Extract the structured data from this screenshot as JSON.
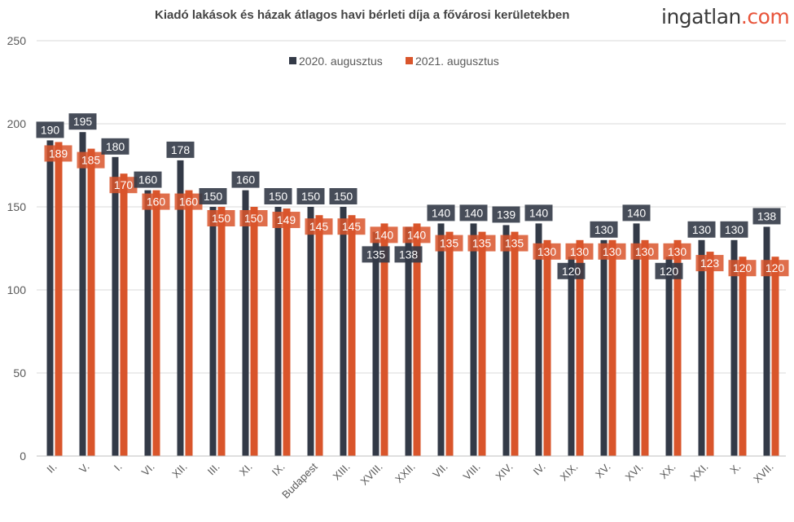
{
  "header": {
    "title": "Kiadó lakások és házak átlagos havi bérleti díja a fővárosi kerületekben",
    "logo_main": "ingatlan",
    "logo_suffix": ".com"
  },
  "colors": {
    "series2020": "#333a47",
    "series2021": "#d9552b",
    "grid": "#d9d9d9",
    "axis_text": "#595959"
  },
  "chart_data": {
    "type": "bar",
    "title": "Kiadó lakások és házak átlagos havi bérleti díja a fővárosi kerületekben",
    "xlabel": "",
    "ylabel": "",
    "ylim": [
      0,
      250
    ],
    "yticks": [
      0,
      50,
      100,
      150,
      200,
      250
    ],
    "grid": true,
    "legend_position": "top-center",
    "categories": [
      "II.",
      "V.",
      "I.",
      "VI.",
      "XII.",
      "III.",
      "XI.",
      "IX.",
      "Budapest",
      "XIII.",
      "XVIII.",
      "XXII.",
      "VII.",
      "VIII.",
      "XIV.",
      "IV.",
      "XIX.",
      "XV.",
      "XVI.",
      "XX.",
      "XXI.",
      "X.",
      "XVII."
    ],
    "series": [
      {
        "name": "2020. augusztus",
        "values": [
          190,
          195,
          180,
          160,
          178,
          150,
          160,
          150,
          150,
          150,
          135,
          138,
          140,
          140,
          139,
          140,
          120,
          130,
          140,
          120,
          130,
          130,
          138
        ]
      },
      {
        "name": "2021. augusztus",
        "values": [
          189,
          185,
          170,
          160,
          160,
          150,
          150,
          149,
          145,
          145,
          140,
          140,
          135,
          135,
          135,
          130,
          130,
          130,
          130,
          130,
          123,
          120,
          120
        ]
      }
    ]
  }
}
